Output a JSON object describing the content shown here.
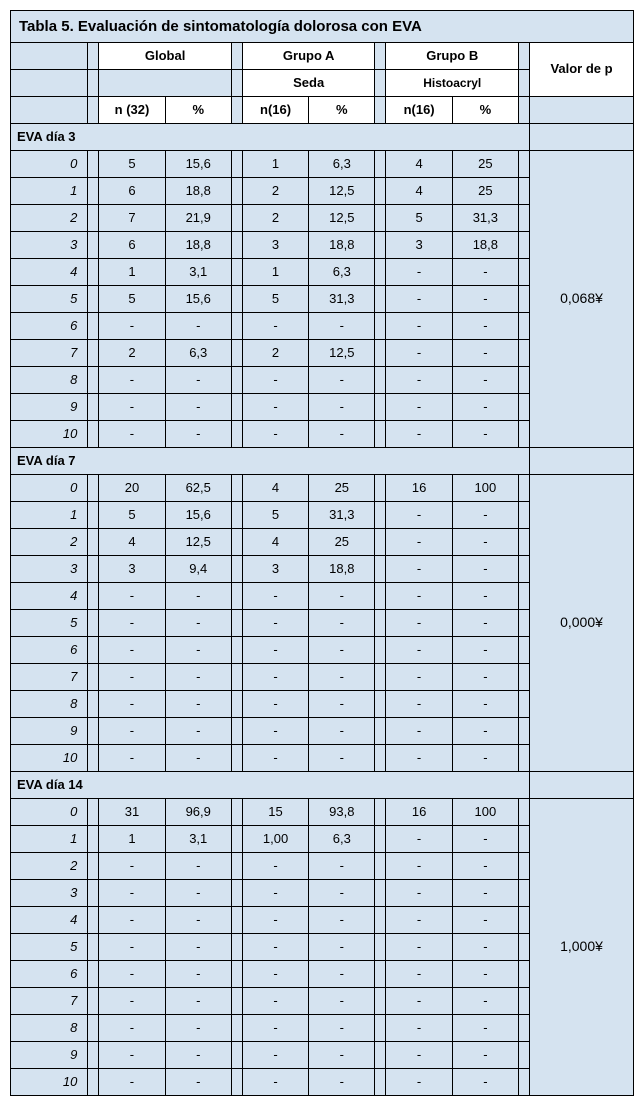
{
  "title": "Tabla 5. Evaluación de sintomatología dolorosa con EVA",
  "headers": {
    "global": "Global",
    "grupoA": "Grupo A",
    "grupoB": "Grupo B",
    "valorp": "Valor de p",
    "seda": "Seda",
    "histoacryl": "Histoacryl",
    "n32": "n (32)",
    "n16a": "n(16)",
    "n16b": "n(16)",
    "pct": "%"
  },
  "sections": [
    {
      "name": "EVA día 3",
      "pvalue": "0,068¥",
      "rows": [
        {
          "l": "0",
          "gn": "5",
          "gp": "15,6",
          "an": "1",
          "ap": "6,3",
          "bn": "4",
          "bp": "25"
        },
        {
          "l": "1",
          "gn": "6",
          "gp": "18,8",
          "an": "2",
          "ap": "12,5",
          "bn": "4",
          "bp": "25"
        },
        {
          "l": "2",
          "gn": "7",
          "gp": "21,9",
          "an": "2",
          "ap": "12,5",
          "bn": "5",
          "bp": "31,3"
        },
        {
          "l": "3",
          "gn": "6",
          "gp": "18,8",
          "an": "3",
          "ap": "18,8",
          "bn": "3",
          "bp": "18,8"
        },
        {
          "l": "4",
          "gn": "1",
          "gp": "3,1",
          "an": "1",
          "ap": "6,3",
          "bn": "-",
          "bp": "-"
        },
        {
          "l": "5",
          "gn": "5",
          "gp": "15,6",
          "an": "5",
          "ap": "31,3",
          "bn": "-",
          "bp": "-"
        },
        {
          "l": "6",
          "gn": "-",
          "gp": "-",
          "an": "-",
          "ap": "-",
          "bn": "-",
          "bp": "-"
        },
        {
          "l": "7",
          "gn": "2",
          "gp": "6,3",
          "an": "2",
          "ap": "12,5",
          "bn": "-",
          "bp": "-"
        },
        {
          "l": "8",
          "gn": "-",
          "gp": "-",
          "an": "-",
          "ap": "-",
          "bn": "-",
          "bp": "-"
        },
        {
          "l": "9",
          "gn": "-",
          "gp": "-",
          "an": "-",
          "ap": "-",
          "bn": "-",
          "bp": "-"
        },
        {
          "l": "10",
          "gn": "-",
          "gp": "-",
          "an": "-",
          "ap": "-",
          "bn": "-",
          "bp": "-"
        }
      ]
    },
    {
      "name": "EVA día 7",
      "pvalue": "0,000¥",
      "rows": [
        {
          "l": "0",
          "gn": "20",
          "gp": "62,5",
          "an": "4",
          "ap": "25",
          "bn": "16",
          "bp": "100"
        },
        {
          "l": "1",
          "gn": "5",
          "gp": "15,6",
          "an": "5",
          "ap": "31,3",
          "bn": "-",
          "bp": "-"
        },
        {
          "l": "2",
          "gn": "4",
          "gp": "12,5",
          "an": "4",
          "ap": "25",
          "bn": "-",
          "bp": "-"
        },
        {
          "l": "3",
          "gn": "3",
          "gp": "9,4",
          "an": "3",
          "ap": "18,8",
          "bn": "-",
          "bp": "-"
        },
        {
          "l": "4",
          "gn": "-",
          "gp": "-",
          "an": "-",
          "ap": "-",
          "bn": "-",
          "bp": "-"
        },
        {
          "l": "5",
          "gn": "-",
          "gp": "-",
          "an": "-",
          "ap": "-",
          "bn": "-",
          "bp": "-"
        },
        {
          "l": "6",
          "gn": "-",
          "gp": "-",
          "an": "-",
          "ap": "-",
          "bn": "-",
          "bp": "-"
        },
        {
          "l": "7",
          "gn": "-",
          "gp": "-",
          "an": "-",
          "ap": "-",
          "bn": "-",
          "bp": "-"
        },
        {
          "l": "8",
          "gn": "-",
          "gp": "-",
          "an": "-",
          "ap": "-",
          "bn": "-",
          "bp": "-"
        },
        {
          "l": "9",
          "gn": "-",
          "gp": "-",
          "an": "-",
          "ap": "-",
          "bn": "-",
          "bp": "-"
        },
        {
          "l": "10",
          "gn": "-",
          "gp": "-",
          "an": "-",
          "ap": "-",
          "bn": "-",
          "bp": "-"
        }
      ]
    },
    {
      "name": "EVA día 14",
      "pvalue": "1,000¥",
      "rows": [
        {
          "l": "0",
          "gn": "31",
          "gp": "96,9",
          "an": "15",
          "ap": "93,8",
          "bn": "16",
          "bp": "100"
        },
        {
          "l": "1",
          "gn": "1",
          "gp": "3,1",
          "an": "1,00",
          "ap": "6,3",
          "bn": "-",
          "bp": "-"
        },
        {
          "l": "2",
          "gn": "-",
          "gp": "-",
          "an": "-",
          "ap": "-",
          "bn": "-",
          "bp": "-"
        },
        {
          "l": "3",
          "gn": "-",
          "gp": "-",
          "an": "-",
          "ap": "-",
          "bn": "-",
          "bp": "-"
        },
        {
          "l": "4",
          "gn": "-",
          "gp": "-",
          "an": "-",
          "ap": "-",
          "bn": "-",
          "bp": "-"
        },
        {
          "l": "5",
          "gn": "-",
          "gp": "-",
          "an": "-",
          "ap": "-",
          "bn": "-",
          "bp": "-"
        },
        {
          "l": "6",
          "gn": "-",
          "gp": "-",
          "an": "-",
          "ap": "-",
          "bn": "-",
          "bp": "-"
        },
        {
          "l": "7",
          "gn": "-",
          "gp": "-",
          "an": "-",
          "ap": "-",
          "bn": "-",
          "bp": "-"
        },
        {
          "l": "8",
          "gn": "-",
          "gp": "-",
          "an": "-",
          "ap": "-",
          "bn": "-",
          "bp": "-"
        },
        {
          "l": "9",
          "gn": "-",
          "gp": "-",
          "an": "-",
          "ap": "-",
          "bn": "-",
          "bp": "-"
        },
        {
          "l": "10",
          "gn": "-",
          "gp": "-",
          "an": "-",
          "ap": "-",
          "bn": "-",
          "bp": "-"
        }
      ]
    }
  ]
}
